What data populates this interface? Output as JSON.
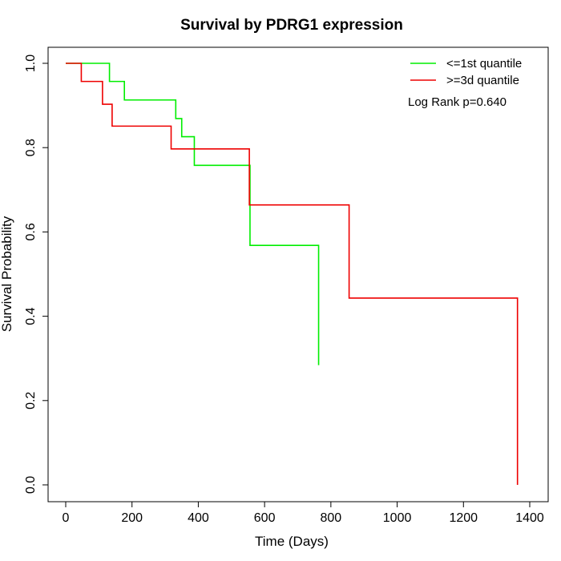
{
  "chart_data": {
    "type": "line",
    "title": "Survival by PDRG1 expression",
    "xlabel": "Time (Days)",
    "ylabel": "Survival Probability",
    "xlim": [
      0,
      1400
    ],
    "ylim": [
      0,
      1
    ],
    "x_ticks": [
      0,
      200,
      400,
      600,
      800,
      1000,
      1200,
      1400
    ],
    "y_ticks": [
      0.0,
      0.2,
      0.4,
      0.6,
      0.8,
      1.0
    ],
    "x_tick_labels": [
      "0",
      "200",
      "400",
      "600",
      "800",
      "1000",
      "1200",
      "1400"
    ],
    "y_tick_labels": [
      "0.0",
      "0.2",
      "0.4",
      "0.6",
      "0.8",
      "1.0"
    ],
    "grid": false,
    "legend_position": "top-right",
    "annotation": "Log Rank p=0.640",
    "series": [
      {
        "name": "<=1st quantile",
        "color": "#00ee00",
        "step": true,
        "x": [
          0,
          132,
          177,
          332,
          350,
          388,
          556,
          763
        ],
        "y": [
          1.0,
          0.957,
          0.913,
          0.869,
          0.826,
          0.758,
          0.568,
          0.284
        ]
      },
      {
        "name": ">=3d quantile",
        "color": "#ee0000",
        "step": true,
        "x": [
          0,
          47,
          111,
          140,
          318,
          554,
          855,
          1363
        ],
        "y": [
          1.0,
          0.957,
          0.903,
          0.851,
          0.797,
          0.664,
          0.443,
          0.0
        ]
      }
    ]
  }
}
